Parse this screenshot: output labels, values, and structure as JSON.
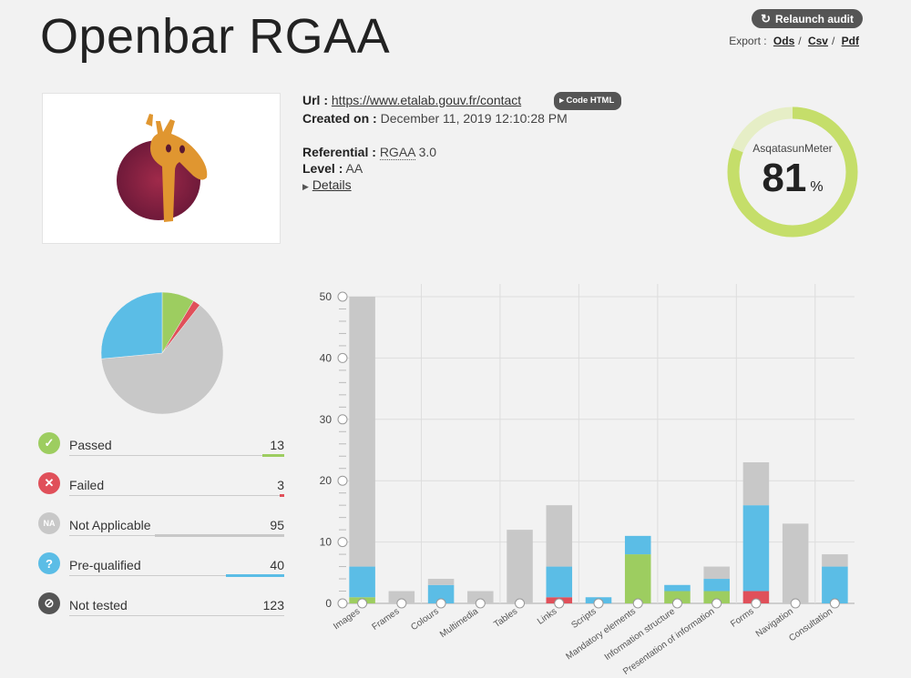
{
  "header": {
    "title": "Openbar RGAA",
    "relaunch_label": "Relaunch audit",
    "export_label": "Export :",
    "export_links": [
      "Ods",
      "Csv",
      "Pdf"
    ],
    "export_sep": "/"
  },
  "audit": {
    "url_label": "Url :",
    "url": "https://www.etalab.gouv.fr/contact",
    "code_html_label": "Code HTML",
    "created_label": "Created on :",
    "created": "December 11, 2019 12:10:28 PM",
    "referential_label": "Referential :",
    "referential_abbr": "RGAA",
    "referential_version": "3.0",
    "level_label": "Level :",
    "level": "AA",
    "details_label": "Details"
  },
  "meter": {
    "label": "AsqatasunMeter",
    "value": "81",
    "unit": "%",
    "fraction": 0.81,
    "color": "#c5de6a",
    "track_color": "#e6eec6"
  },
  "results": [
    {
      "label": "Passed",
      "count": "13",
      "color": "#9dcd60",
      "icon": "check-icon",
      "glyph": "✓",
      "bar_fraction": 0.1
    },
    {
      "label": "Failed",
      "count": "3",
      "color": "#e0505a",
      "icon": "cross-icon",
      "glyph": "✕",
      "bar_fraction": 0.02
    },
    {
      "label": "Not Applicable",
      "count": "95",
      "color": "#c8c8c8",
      "icon": "na-icon",
      "glyph": "NA",
      "bar_fraction": 0.6
    },
    {
      "label": "Pre-qualified",
      "count": "40",
      "color": "#5bbde6",
      "icon": "question-icon",
      "glyph": "?",
      "bar_fraction": 0.27
    },
    {
      "label": "Not tested",
      "count": "123",
      "color": "#555555",
      "icon": "not-tested-icon",
      "glyph": "⊘",
      "bar_fraction": 0
    }
  ],
  "chart_data": [
    {
      "type": "pie",
      "slices": [
        {
          "label": "Passed",
          "value": 13,
          "color": "#9dcd60"
        },
        {
          "label": "Failed",
          "value": 3,
          "color": "#e0505a"
        },
        {
          "label": "Not Applicable",
          "value": 95,
          "color": "#c8c8c8"
        },
        {
          "label": "Pre-qualified",
          "value": 40,
          "color": "#5bbde6"
        }
      ]
    },
    {
      "type": "bar",
      "stacked": true,
      "categories": [
        "Images",
        "Frames",
        "Colours",
        "Multimedia",
        "Tables",
        "Links",
        "Scripts",
        "Mandatory elements",
        "Information structure",
        "Presentation of information",
        "Forms",
        "Navigation",
        "Consultation"
      ],
      "series": [
        {
          "name": "Failed",
          "color": "#e0505a",
          "values": [
            0,
            0,
            0,
            0,
            0,
            1,
            0,
            0,
            0,
            0,
            2,
            0,
            0
          ]
        },
        {
          "name": "Passed",
          "color": "#9dcd60",
          "values": [
            1,
            0,
            0,
            0,
            0,
            0,
            0,
            8,
            2,
            2,
            0,
            0,
            0
          ]
        },
        {
          "name": "Pre-qualified",
          "color": "#5bbde6",
          "values": [
            5,
            0,
            3,
            0,
            0,
            5,
            1,
            3,
            1,
            2,
            14,
            0,
            6
          ]
        },
        {
          "name": "Not Applicable",
          "color": "#c8c8c8",
          "values": [
            44,
            2,
            1,
            2,
            12,
            10,
            0,
            0,
            0,
            2,
            7,
            13,
            2
          ]
        }
      ],
      "yticks": [
        0,
        10,
        20,
        30,
        40,
        50
      ],
      "ylim": [
        0,
        50
      ],
      "grid": true
    }
  ]
}
